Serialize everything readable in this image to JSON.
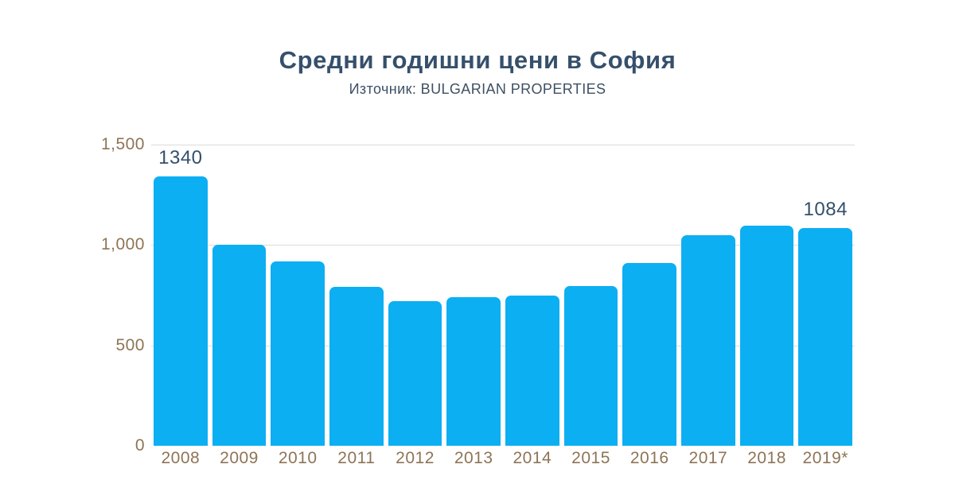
{
  "header": {
    "title": "Средни годишни цени в София",
    "subtitle": "Източник: BULGARIAN PROPERTIES"
  },
  "chart_data": {
    "type": "bar",
    "title": "Средни годишни цени в София",
    "subtitle": "Източник: BULGARIAN PROPERTIES",
    "categories": [
      "2008",
      "2009",
      "2010",
      "2011",
      "2012",
      "2013",
      "2014",
      "2015",
      "2016",
      "2017",
      "2018",
      "2019*"
    ],
    "values": [
      1340,
      1000,
      920,
      790,
      720,
      740,
      750,
      795,
      910,
      1050,
      1095,
      1084
    ],
    "point_labels": [
      "1340",
      "",
      "",
      "",
      "",
      "",
      "",
      "",
      "",
      "",
      "",
      "1084"
    ],
    "xlabel": "",
    "ylabel": "",
    "ylim": [
      0,
      1500
    ],
    "yticks": [
      {
        "label": "0",
        "value": 0
      },
      {
        "label": "500",
        "value": 500
      },
      {
        "label": "1,000",
        "value": 1000
      },
      {
        "label": "1,500",
        "value": 1500
      }
    ],
    "grid": "horizontal",
    "legend": "none"
  },
  "colors": {
    "title": "#36506b",
    "subtitle": "#3e5063",
    "bar": "#0caff2",
    "tick_label": "#8e7456",
    "value_label": "#33506b",
    "gridline": "#dbdbdb"
  }
}
